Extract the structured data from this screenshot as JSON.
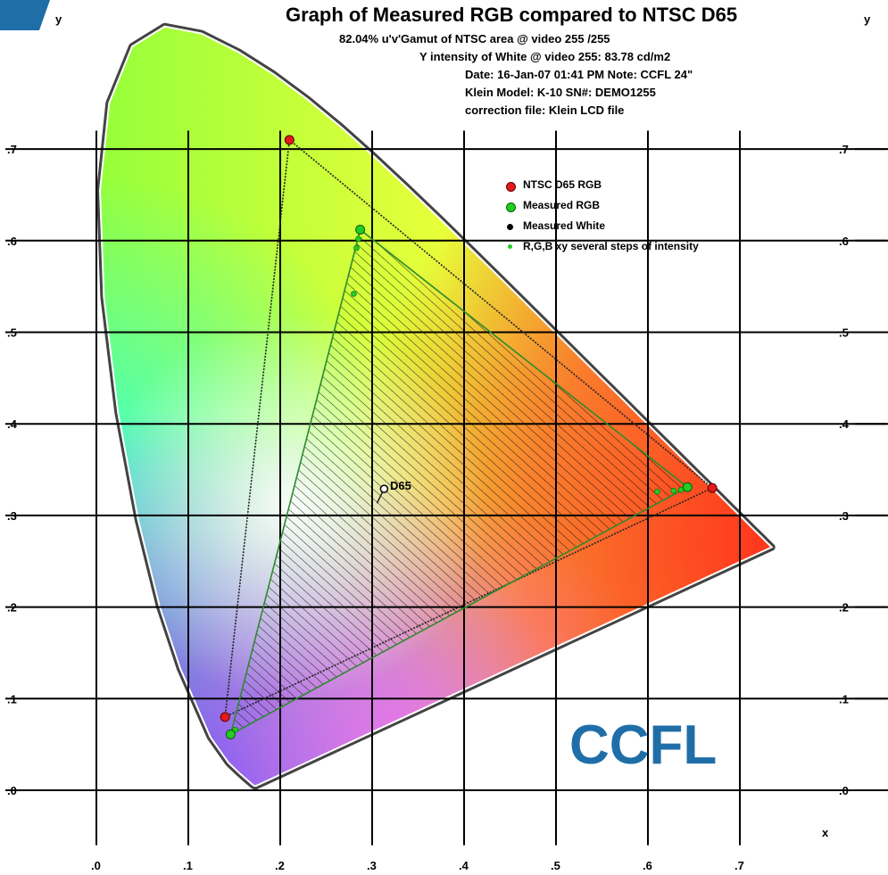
{
  "header": {
    "title": "Graph of Measured RGB compared to NTSC D65",
    "line1": "82.04% u'v'Gamut of NTSC area @ video 255 /255",
    "line2": "Y intensity of White @ video 255:  83.78 cd/m2",
    "line3": "Date: 16-Jan-07   01:41 PM  Note: CCFL 24\"",
    "line4": "Klein Model: K-10        SN#: DEMO1255",
    "line5": "correction file: Klein LCD file"
  },
  "watermark": {
    "text": "CCFL",
    "color": "#1f6ea8"
  },
  "colors": {
    "ntsc_point": "#e31a1c",
    "measured_point": "#22cc22",
    "white_point": "#000000",
    "gamut_line": "#2d8a2d",
    "grid": "#000000",
    "corner_tab": "#1f6ea8"
  },
  "chart_data": {
    "type": "scatter",
    "title": "Graph of Measured RGB compared to NTSC D65",
    "xlabel": "x",
    "ylabel": "y",
    "xlim": [
      0.0,
      0.8
    ],
    "ylim": [
      0.0,
      0.8
    ],
    "grid": true,
    "legend_placement": "top-right",
    "x_ticks": [
      ".0",
      ".1",
      ".2",
      ".3",
      ".4",
      ".5",
      ".6",
      ".7"
    ],
    "y_ticks": [
      ".0",
      ".1",
      ".2",
      ".3",
      ".4",
      ".5",
      ".6",
      ".7"
    ],
    "legend": [
      "NTSC D65 RGB",
      "Measured RGB",
      "Measured White",
      "R,G,B xy several steps of intensity"
    ],
    "series": [
      {
        "name": "NTSC D65 RGB",
        "points": [
          [
            0.67,
            0.33
          ],
          [
            0.21,
            0.71
          ],
          [
            0.14,
            0.08
          ]
        ]
      },
      {
        "name": "Measured RGB",
        "points": [
          [
            0.643,
            0.331
          ],
          [
            0.287,
            0.612
          ],
          [
            0.146,
            0.061
          ]
        ]
      },
      {
        "name": "Measured White",
        "points": [
          [
            0.313,
            0.329
          ]
        ]
      },
      {
        "name": "R,G,B xy several steps of intensity",
        "points": [
          [
            0.636,
            0.328
          ],
          [
            0.628,
            0.327
          ],
          [
            0.61,
            0.326
          ],
          [
            0.285,
            0.602
          ],
          [
            0.283,
            0.592
          ],
          [
            0.28,
            0.542
          ],
          [
            0.151,
            0.066
          ]
        ]
      }
    ],
    "annotations": [
      {
        "text": "D65",
        "x": 0.313,
        "y": 0.329
      }
    ]
  }
}
